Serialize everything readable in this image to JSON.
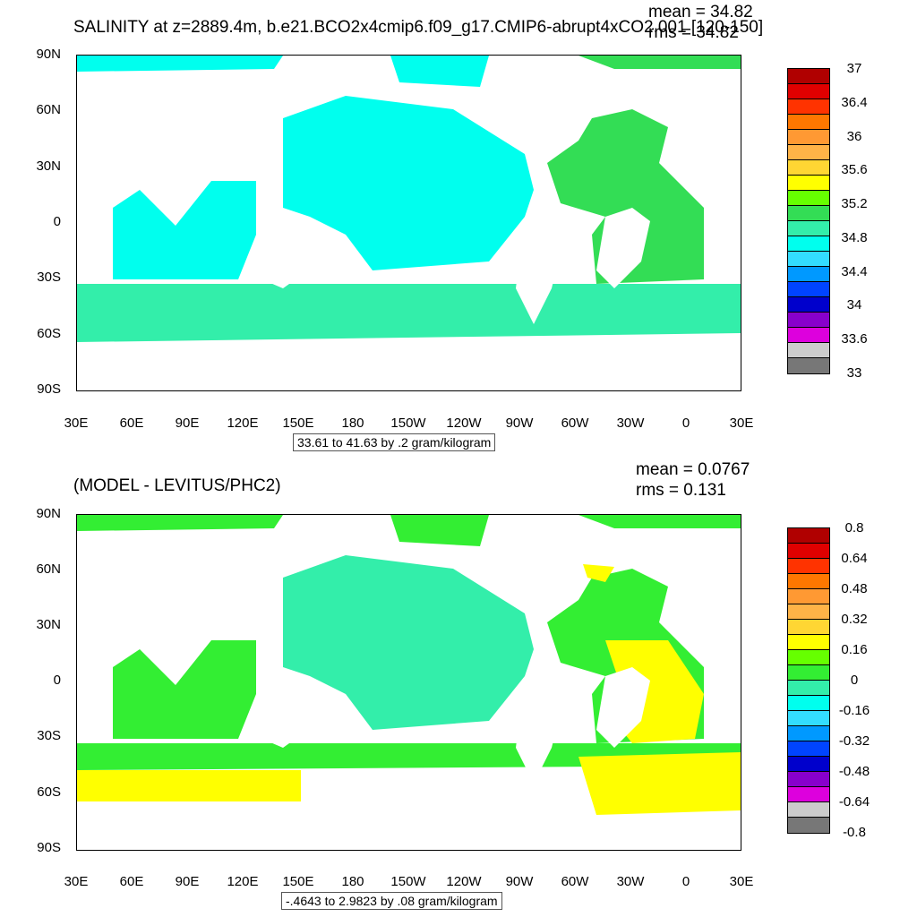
{
  "top_panel": {
    "title": "SALINITY at z=2889.4m, b.e21.BCO2x4cmip6.f09_g17.CMIP6-abrupt4xCO2.001 [120-150]",
    "mean": "mean = 34.82",
    "rms": "rms = 34.82",
    "range_label": "33.61 to 41.63 by .2 gram/kilogram",
    "lat_labels": [
      "90N",
      "60N",
      "30N",
      "0",
      "30S",
      "60S",
      "90S"
    ],
    "lon_labels": [
      "30E",
      "60E",
      "90E",
      "120E",
      "150E",
      "180",
      "150W",
      "120W",
      "90W",
      "60W",
      "30W",
      "0",
      "30E"
    ],
    "colorbar": {
      "colors": [
        "#b00000",
        "#e00000",
        "#ff3300",
        "#ff7700",
        "#ff9933",
        "#ffb347",
        "#ffd633",
        "#ffff00",
        "#66ff00",
        "#33dd55",
        "#33eeaa",
        "#00ffee",
        "#33ddff",
        "#0099ff",
        "#0044ff",
        "#0000cc",
        "#8800cc",
        "#dd00dd",
        "#cccccc",
        "#777777"
      ],
      "labels": [
        "37",
        "36.4",
        "36",
        "35.6",
        "35.2",
        "34.8",
        "34.4",
        "34",
        "33.6",
        "33"
      ]
    }
  },
  "bottom_panel": {
    "title": "(MODEL - LEVITUS/PHC2)",
    "mean": "mean = 0.0767",
    "rms": "rms = 0.131",
    "range_label": "-.4643 to 2.9823 by .08 gram/kilogram",
    "lat_labels": [
      "90N",
      "60N",
      "30N",
      "0",
      "30S",
      "60S",
      "90S"
    ],
    "lon_labels": [
      "30E",
      "60E",
      "90E",
      "120E",
      "150E",
      "180",
      "150W",
      "120W",
      "90W",
      "60W",
      "30W",
      "0",
      "30E"
    ],
    "colorbar": {
      "colors": [
        "#b00000",
        "#e00000",
        "#ff3300",
        "#ff7700",
        "#ff9933",
        "#ffb347",
        "#ffd633",
        "#ffff00",
        "#66ff00",
        "#33ee33",
        "#33eeaa",
        "#00ffee",
        "#33ddff",
        "#0099ff",
        "#0044ff",
        "#0000cc",
        "#8800cc",
        "#dd00dd",
        "#cccccc",
        "#777777"
      ],
      "labels": [
        "0.8",
        "0.64",
        "0.48",
        "0.32",
        "0.16",
        "0",
        "-0.16",
        "-0.32",
        "-0.48",
        "-0.64",
        "-0.8"
      ]
    }
  },
  "map_colors": {
    "pacific_top": "#00ffee",
    "southern_top": "#33eeaa",
    "atlantic_top": "#33dd55",
    "indian_top": "#00ffee",
    "pacific_bottom": "#33eeaa",
    "southern_bottom": "#33ee33",
    "atlantic_bottom": "#33ee33",
    "yellow_bottom": "#ffff00",
    "land": "#ffffff"
  }
}
